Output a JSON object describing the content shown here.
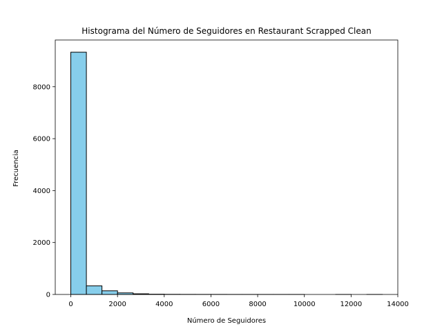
{
  "chart_data": {
    "type": "bar",
    "title": "Histograma del Número de Seguidores en Restaurant Scrapped Clean",
    "xlabel": "Número de Seguidores",
    "ylabel": "Frecuencia",
    "xlim": [
      -666,
      14000
    ],
    "ylim": [
      0,
      9800
    ],
    "xticks": [
      0,
      2000,
      4000,
      6000,
      8000,
      10000,
      12000,
      14000
    ],
    "yticks": [
      0,
      2000,
      4000,
      6000,
      8000
    ],
    "grid": false,
    "bar_color": "#87ceeb",
    "edge_color": "#000000",
    "bins": [
      {
        "x0": 0,
        "x1": 667,
        "count": 9330
      },
      {
        "x0": 667,
        "x1": 1334,
        "count": 330
      },
      {
        "x0": 1334,
        "x1": 2001,
        "count": 140
      },
      {
        "x0": 2001,
        "x1": 2668,
        "count": 60
      },
      {
        "x0": 2668,
        "x1": 3335,
        "count": 25
      },
      {
        "x0": 3335,
        "x1": 4002,
        "count": 10
      },
      {
        "x0": 4002,
        "x1": 4669,
        "count": 5
      },
      {
        "x0": 4669,
        "x1": 5336,
        "count": 3
      },
      {
        "x0": 5336,
        "x1": 6003,
        "count": 2
      },
      {
        "x0": 6003,
        "x1": 6670,
        "count": 2
      },
      {
        "x0": 6670,
        "x1": 7337,
        "count": 1
      },
      {
        "x0": 7337,
        "x1": 8004,
        "count": 1
      },
      {
        "x0": 8004,
        "x1": 8671,
        "count": 1
      },
      {
        "x0": 8671,
        "x1": 9338,
        "count": 1
      },
      {
        "x0": 9338,
        "x1": 10005,
        "count": 1
      },
      {
        "x0": 10005,
        "x1": 10672,
        "count": 0
      },
      {
        "x0": 10672,
        "x1": 11339,
        "count": 0
      },
      {
        "x0": 11339,
        "x1": 12006,
        "count": 1
      },
      {
        "x0": 12006,
        "x1": 12673,
        "count": 0
      },
      {
        "x0": 12673,
        "x1": 13340,
        "count": 1
      }
    ]
  }
}
